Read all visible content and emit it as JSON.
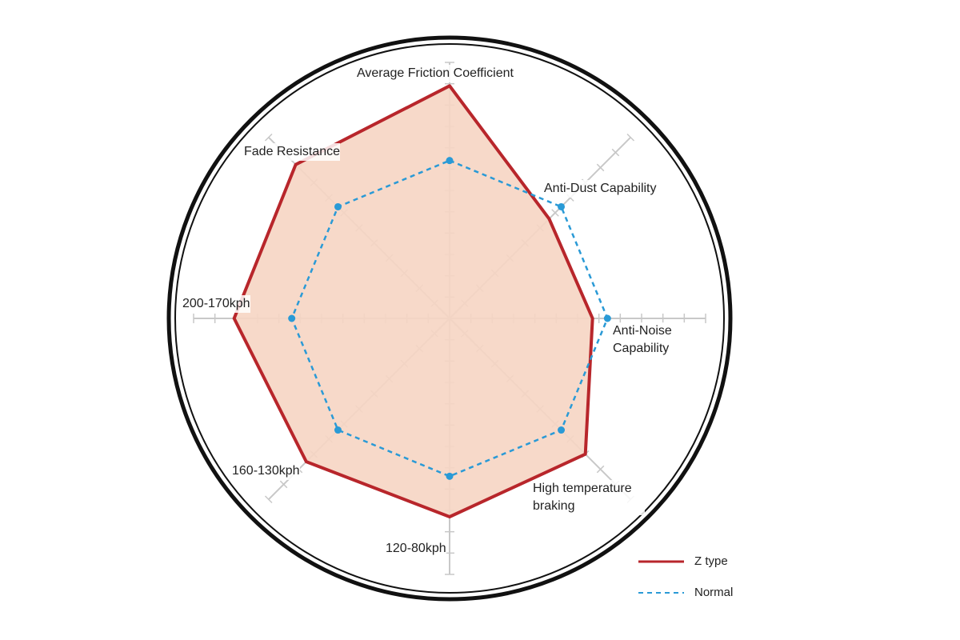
{
  "chart_data": {
    "type": "radar",
    "categories": [
      "Average Friction Coefficient",
      "Anti-Dust Capability",
      "Anti-Noise Capability",
      "High temperature braking",
      "120-80kph",
      "160-130kph",
      "200-170kph",
      "Fade Resistance"
    ],
    "rlim": [
      0,
      12
    ],
    "rticks": [
      1,
      2,
      3,
      4,
      5,
      6,
      7,
      8,
      9,
      10,
      11,
      12
    ],
    "series": [
      {
        "name": "Z type",
        "color": "#b8262b",
        "fill": "#f6d5c3",
        "line_style": "solid",
        "values": [
          10.9,
          6.6,
          6.7,
          9.0,
          9.3,
          9.5,
          10.1,
          10.2
        ]
      },
      {
        "name": "Normal",
        "color": "#2a9ad6",
        "line_style": "dashed",
        "values": [
          7.4,
          7.4,
          7.4,
          7.4,
          7.4,
          7.4,
          7.4,
          7.4
        ]
      }
    ]
  }
}
